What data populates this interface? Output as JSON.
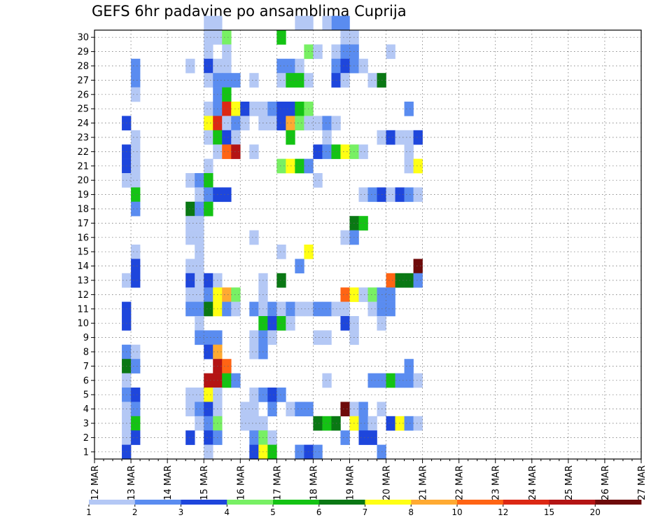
{
  "chart_data": {
    "type": "heatmap",
    "title": "GEFS 6hr padavine po ansamblima Cuprija",
    "x_tick_labels": [
      "12 MAR",
      "13 MAR",
      "14 MAR",
      "15 MAR",
      "16 MAR",
      "17 MAR",
      "18 MAR",
      "19 MAR",
      "20 MAR",
      "21 MAR",
      "22 MAR",
      "23 MAR",
      "24 MAR",
      "25 MAR",
      "26 MAR",
      "27 MAR"
    ],
    "y_tick_labels": [
      "1",
      "2",
      "3",
      "4",
      "5",
      "6",
      "7",
      "8",
      "9",
      "10",
      "11",
      "12",
      "13",
      "14",
      "15",
      "16",
      "17",
      "18",
      "19",
      "20",
      "21",
      "22",
      "23",
      "24",
      "25",
      "26",
      "27",
      "28",
      "29",
      "30"
    ],
    "xlim": [
      "12 MAR",
      "27 MAR"
    ],
    "ylim": [
      0,
      30
    ],
    "grid": true,
    "step_hours": 6,
    "members": 30,
    "color_scale": {
      "breaks": [
        "1",
        "2",
        "3",
        "4",
        "5",
        "6",
        "7",
        "8",
        "10",
        "12",
        "15",
        "20"
      ],
      "colors": [
        "#b4c8f5",
        "#5a8cf0",
        "#1e46dc",
        "#78f064",
        "#14c314",
        "#0a7814",
        "#ffff14",
        "#ffaa32",
        "#ff6414",
        "#dc2814",
        "#b41414",
        "#6e0a0a"
      ]
    },
    "note": "Cells listed as [member, step_index_from_12_MAR_00UTC, color_class_index]",
    "cells": [
      [
        30,
        12,
        0
      ],
      [
        30,
        13,
        0
      ],
      [
        30,
        26,
        1
      ],
      [
        30,
        27,
        1
      ],
      [
        30,
        25,
        0
      ],
      [
        30,
        22,
        0
      ],
      [
        30,
        23,
        0
      ],
      [
        29,
        12,
        0
      ],
      [
        29,
        13,
        0
      ],
      [
        29,
        14,
        3
      ],
      [
        29,
        27,
        0
      ],
      [
        29,
        20,
        4
      ],
      [
        29,
        27,
        0
      ],
      [
        29,
        28,
        0
      ],
      [
        28,
        12,
        0
      ],
      [
        28,
        14,
        0
      ],
      [
        28,
        23,
        3
      ],
      [
        28,
        24,
        0
      ],
      [
        28,
        26,
        0
      ],
      [
        28,
        27,
        1
      ],
      [
        28,
        28,
        1
      ],
      [
        28,
        32,
        0
      ],
      [
        27,
        4,
        1
      ],
      [
        27,
        10,
        0
      ],
      [
        27,
        12,
        2
      ],
      [
        27,
        13,
        0
      ],
      [
        27,
        14,
        0
      ],
      [
        27,
        21,
        1
      ],
      [
        27,
        22,
        0
      ],
      [
        27,
        20,
        1
      ],
      [
        27,
        26,
        1
      ],
      [
        27,
        27,
        2
      ],
      [
        27,
        28,
        1
      ],
      [
        27,
        29,
        0
      ],
      [
        26,
        4,
        1
      ],
      [
        26,
        12,
        0
      ],
      [
        26,
        13,
        1
      ],
      [
        26,
        14,
        1
      ],
      [
        26,
        15,
        1
      ],
      [
        26,
        17,
        0
      ],
      [
        26,
        20,
        0
      ],
      [
        26,
        21,
        4
      ],
      [
        26,
        22,
        4
      ],
      [
        26,
        23,
        0
      ],
      [
        26,
        26,
        2
      ],
      [
        26,
        27,
        0
      ],
      [
        26,
        30,
        0
      ],
      [
        26,
        31,
        5
      ],
      [
        25,
        4,
        0
      ],
      [
        25,
        13,
        1
      ],
      [
        25,
        14,
        4
      ],
      [
        24,
        12,
        0
      ],
      [
        24,
        13,
        1
      ],
      [
        24,
        14,
        9
      ],
      [
        24,
        15,
        6
      ],
      [
        24,
        16,
        2
      ],
      [
        24,
        17,
        0
      ],
      [
        24,
        18,
        0
      ],
      [
        24,
        19,
        1
      ],
      [
        24,
        20,
        2
      ],
      [
        24,
        21,
        2
      ],
      [
        24,
        22,
        4
      ],
      [
        24,
        23,
        3
      ],
      [
        24,
        34,
        1
      ],
      [
        23,
        3,
        2
      ],
      [
        23,
        12,
        6
      ],
      [
        23,
        13,
        9
      ],
      [
        23,
        14,
        0
      ],
      [
        23,
        15,
        1
      ],
      [
        23,
        16,
        0
      ],
      [
        23,
        18,
        0
      ],
      [
        23,
        19,
        0
      ],
      [
        23,
        20,
        2
      ],
      [
        23,
        21,
        7
      ],
      [
        23,
        22,
        3
      ],
      [
        23,
        23,
        0
      ],
      [
        23,
        24,
        0
      ],
      [
        23,
        25,
        1
      ],
      [
        23,
        26,
        0
      ],
      [
        22,
        4,
        0
      ],
      [
        22,
        12,
        0
      ],
      [
        22,
        13,
        4
      ],
      [
        22,
        14,
        2
      ],
      [
        22,
        15,
        0
      ],
      [
        22,
        21,
        4
      ],
      [
        22,
        25,
        0
      ],
      [
        22,
        31,
        0
      ],
      [
        22,
        32,
        2
      ],
      [
        22,
        33,
        0
      ],
      [
        22,
        34,
        0
      ],
      [
        22,
        35,
        2
      ],
      [
        21,
        3,
        2
      ],
      [
        21,
        4,
        0
      ],
      [
        21,
        13,
        0
      ],
      [
        21,
        14,
        8
      ],
      [
        21,
        15,
        10
      ],
      [
        21,
        17,
        0
      ],
      [
        21,
        24,
        2
      ],
      [
        21,
        25,
        1
      ],
      [
        21,
        26,
        4
      ],
      [
        21,
        27,
        6
      ],
      [
        21,
        28,
        3
      ],
      [
        21,
        29,
        0
      ],
      [
        21,
        34,
        0
      ],
      [
        20,
        3,
        2
      ],
      [
        20,
        4,
        0
      ],
      [
        20,
        12,
        0
      ],
      [
        20,
        20,
        3
      ],
      [
        20,
        21,
        6
      ],
      [
        20,
        22,
        4
      ],
      [
        20,
        23,
        1
      ],
      [
        20,
        34,
        0
      ],
      [
        20,
        35,
        6
      ],
      [
        19,
        3,
        0
      ],
      [
        19,
        4,
        0
      ],
      [
        19,
        10,
        0
      ],
      [
        19,
        11,
        1
      ],
      [
        19,
        12,
        4
      ],
      [
        19,
        24,
        0
      ],
      [
        18,
        4,
        4
      ],
      [
        18,
        11,
        0
      ],
      [
        18,
        12,
        1
      ],
      [
        18,
        13,
        2
      ],
      [
        18,
        14,
        2
      ],
      [
        18,
        29,
        0
      ],
      [
        18,
        30,
        1
      ],
      [
        18,
        31,
        2
      ],
      [
        18,
        32,
        0
      ],
      [
        18,
        33,
        2
      ],
      [
        18,
        34,
        1
      ],
      [
        18,
        35,
        0
      ],
      [
        17,
        4,
        1
      ],
      [
        17,
        10,
        5
      ],
      [
        17,
        11,
        1
      ],
      [
        17,
        12,
        4
      ],
      [
        16,
        10,
        0
      ],
      [
        16,
        11,
        0
      ],
      [
        16,
        28,
        5
      ],
      [
        16,
        29,
        4
      ],
      [
        15,
        10,
        0
      ],
      [
        15,
        11,
        0
      ],
      [
        15,
        17,
        0
      ],
      [
        15,
        27,
        0
      ],
      [
        15,
        28,
        1
      ],
      [
        14,
        4,
        0
      ],
      [
        14,
        11,
        0
      ],
      [
        14,
        23,
        6
      ],
      [
        14,
        20,
        0
      ],
      [
        13,
        4,
        2
      ],
      [
        13,
        10,
        0
      ],
      [
        13,
        11,
        0
      ],
      [
        13,
        22,
        1
      ],
      [
        13,
        35,
        11
      ],
      [
        12,
        3,
        0
      ],
      [
        12,
        4,
        2
      ],
      [
        12,
        10,
        2
      ],
      [
        12,
        11,
        0
      ],
      [
        12,
        12,
        2
      ],
      [
        12,
        13,
        0
      ],
      [
        12,
        20,
        5
      ],
      [
        12,
        18,
        0
      ],
      [
        12,
        32,
        8
      ],
      [
        12,
        33,
        5
      ],
      [
        12,
        34,
        5
      ],
      [
        12,
        35,
        1
      ],
      [
        11,
        10,
        0
      ],
      [
        11,
        11,
        0
      ],
      [
        11,
        12,
        1
      ],
      [
        11,
        13,
        6
      ],
      [
        11,
        14,
        7
      ],
      [
        11,
        15,
        3
      ],
      [
        11,
        18,
        0
      ],
      [
        11,
        27,
        8
      ],
      [
        11,
        28,
        6
      ],
      [
        11,
        29,
        0
      ],
      [
        11,
        30,
        3
      ],
      [
        11,
        31,
        1
      ],
      [
        11,
        32,
        1
      ],
      [
        10,
        3,
        2
      ],
      [
        10,
        10,
        1
      ],
      [
        10,
        11,
        1
      ],
      [
        10,
        12,
        5
      ],
      [
        10,
        13,
        6
      ],
      [
        10,
        14,
        1
      ],
      [
        10,
        15,
        0
      ],
      [
        10,
        17,
        1
      ],
      [
        10,
        18,
        0
      ],
      [
        10,
        19,
        1
      ],
      [
        10,
        20,
        0
      ],
      [
        10,
        21,
        1
      ],
      [
        10,
        22,
        0
      ],
      [
        10,
        23,
        0
      ],
      [
        10,
        24,
        1
      ],
      [
        10,
        25,
        1
      ],
      [
        10,
        26,
        0
      ],
      [
        10,
        27,
        0
      ],
      [
        10,
        30,
        0
      ],
      [
        10,
        31,
        1
      ],
      [
        10,
        32,
        1
      ],
      [
        9,
        3,
        2
      ],
      [
        9,
        11,
        0
      ],
      [
        9,
        18,
        4
      ],
      [
        9,
        19,
        2
      ],
      [
        9,
        20,
        4
      ],
      [
        9,
        21,
        0
      ],
      [
        9,
        27,
        2
      ],
      [
        9,
        28,
        0
      ],
      [
        9,
        31,
        0
      ],
      [
        8,
        11,
        1
      ],
      [
        8,
        12,
        1
      ],
      [
        8,
        13,
        1
      ],
      [
        8,
        17,
        0
      ],
      [
        8,
        18,
        1
      ],
      [
        8,
        19,
        0
      ],
      [
        8,
        24,
        0
      ],
      [
        8,
        25,
        0
      ],
      [
        8,
        28,
        0
      ],
      [
        7,
        3,
        1
      ],
      [
        7,
        4,
        0
      ],
      [
        7,
        12,
        2
      ],
      [
        7,
        13,
        7
      ],
      [
        7,
        17,
        0
      ],
      [
        7,
        18,
        1
      ],
      [
        6,
        3,
        5
      ],
      [
        6,
        4,
        1
      ],
      [
        6,
        13,
        10
      ],
      [
        6,
        14,
        8
      ],
      [
        6,
        34,
        1
      ],
      [
        5,
        3,
        0
      ],
      [
        5,
        12,
        10
      ],
      [
        5,
        13,
        10
      ],
      [
        5,
        14,
        4
      ],
      [
        5,
        15,
        1
      ],
      [
        5,
        25,
        0
      ],
      [
        5,
        30,
        1
      ],
      [
        5,
        31,
        1
      ],
      [
        5,
        32,
        4
      ],
      [
        5,
        33,
        1
      ],
      [
        5,
        34,
        1
      ],
      [
        5,
        35,
        0
      ],
      [
        4,
        3,
        1
      ],
      [
        4,
        4,
        2
      ],
      [
        4,
        10,
        0
      ],
      [
        4,
        11,
        0
      ],
      [
        4,
        12,
        6
      ],
      [
        4,
        13,
        0
      ],
      [
        4,
        17,
        0
      ],
      [
        4,
        18,
        1
      ],
      [
        4,
        19,
        2
      ],
      [
        4,
        20,
        1
      ],
      [
        3,
        3,
        0
      ],
      [
        3,
        4,
        1
      ],
      [
        3,
        10,
        0
      ],
      [
        3,
        11,
        1
      ],
      [
        3,
        12,
        2
      ],
      [
        3,
        13,
        0
      ],
      [
        3,
        16,
        0
      ],
      [
        3,
        17,
        0
      ],
      [
        3,
        19,
        1
      ],
      [
        3,
        21,
        0
      ],
      [
        3,
        22,
        1
      ],
      [
        3,
        23,
        1
      ],
      [
        3,
        27,
        11
      ],
      [
        3,
        28,
        0
      ],
      [
        3,
        29,
        1
      ],
      [
        3,
        31,
        0
      ],
      [
        2,
        3,
        0
      ],
      [
        2,
        4,
        4
      ],
      [
        2,
        11,
        0
      ],
      [
        2,
        12,
        1
      ],
      [
        2,
        13,
        3
      ],
      [
        2,
        16,
        0
      ],
      [
        2,
        17,
        0
      ],
      [
        2,
        18,
        0
      ],
      [
        2,
        24,
        5
      ],
      [
        2,
        25,
        4
      ],
      [
        2,
        26,
        5
      ],
      [
        2,
        28,
        6
      ],
      [
        2,
        29,
        1
      ],
      [
        2,
        30,
        0
      ],
      [
        2,
        32,
        2
      ],
      [
        2,
        33,
        6
      ],
      [
        2,
        34,
        1
      ],
      [
        2,
        35,
        0
      ],
      [
        1,
        3,
        0
      ],
      [
        1,
        4,
        2
      ],
      [
        1,
        10,
        2
      ],
      [
        1,
        12,
        2
      ],
      [
        1,
        13,
        1
      ],
      [
        1,
        17,
        1
      ],
      [
        1,
        18,
        3
      ],
      [
        1,
        19,
        0
      ],
      [
        1,
        27,
        1
      ],
      [
        1,
        29,
        2
      ],
      [
        1,
        30,
        2
      ],
      [
        0,
        3,
        2
      ],
      [
        0,
        12,
        0
      ],
      [
        0,
        17,
        2
      ],
      [
        0,
        18,
        6
      ],
      [
        0,
        19,
        4
      ],
      [
        0,
        22,
        1
      ],
      [
        0,
        23,
        2
      ],
      [
        0,
        24,
        1
      ],
      [
        0,
        31,
        1
      ]
    ]
  }
}
